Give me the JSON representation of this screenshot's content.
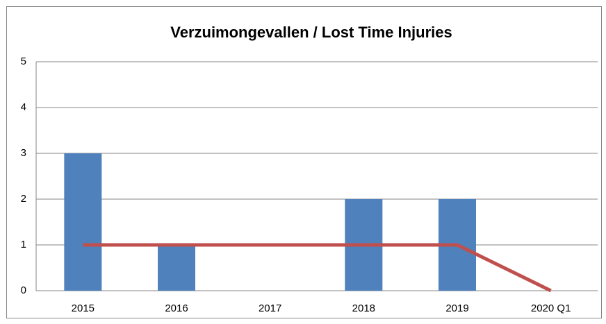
{
  "chart_data": {
    "type": "bar_line",
    "title": "Verzuimongevallen / Lost Time Injuries",
    "categories": [
      "2015",
      "2016",
      "2017",
      "2018",
      "2019",
      "2020 Q1"
    ],
    "series": [
      {
        "type": "bar",
        "color": "#4f81bd",
        "values": [
          3,
          1,
          0,
          2,
          2,
          0
        ]
      },
      {
        "type": "line",
        "color": "#c0504d",
        "values": [
          1,
          1,
          1,
          1,
          1,
          0
        ]
      }
    ],
    "ylim": [
      0,
      5
    ],
    "yticks": [
      0,
      1,
      2,
      3,
      4,
      5
    ],
    "grid": true
  }
}
